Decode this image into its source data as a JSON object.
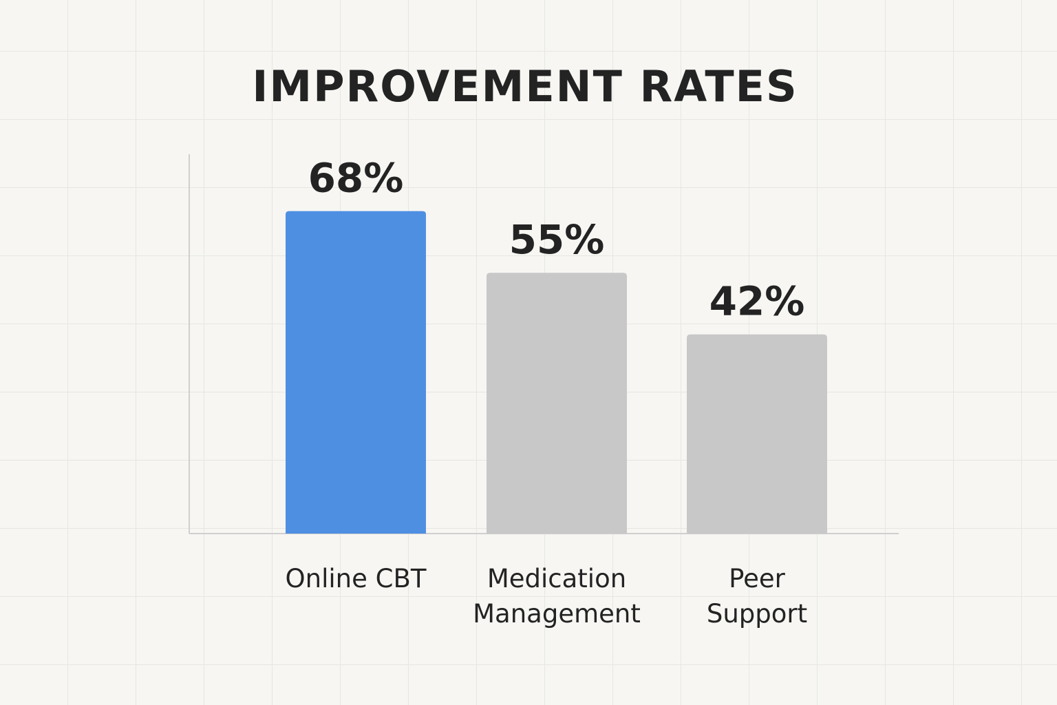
{
  "chart_data": {
    "type": "bar",
    "title": "IMPROVEMENT RATES",
    "categories": [
      "Online CBT",
      "Medication Management",
      "Peer Support"
    ],
    "category_lines": [
      [
        "Online CBT"
      ],
      [
        "Medication",
        "Management"
      ],
      [
        "Peer",
        "Support"
      ]
    ],
    "values": [
      68,
      55,
      42
    ],
    "value_labels": [
      "68%",
      "55%",
      "42%"
    ],
    "unit": "%",
    "ylim": [
      0,
      80
    ],
    "grid": true,
    "xlabel": "",
    "ylabel": "",
    "colors": [
      "#4f8fe2",
      "#c8c8c8",
      "#c8c8c8"
    ],
    "axis_color": "#cfcfcf"
  }
}
